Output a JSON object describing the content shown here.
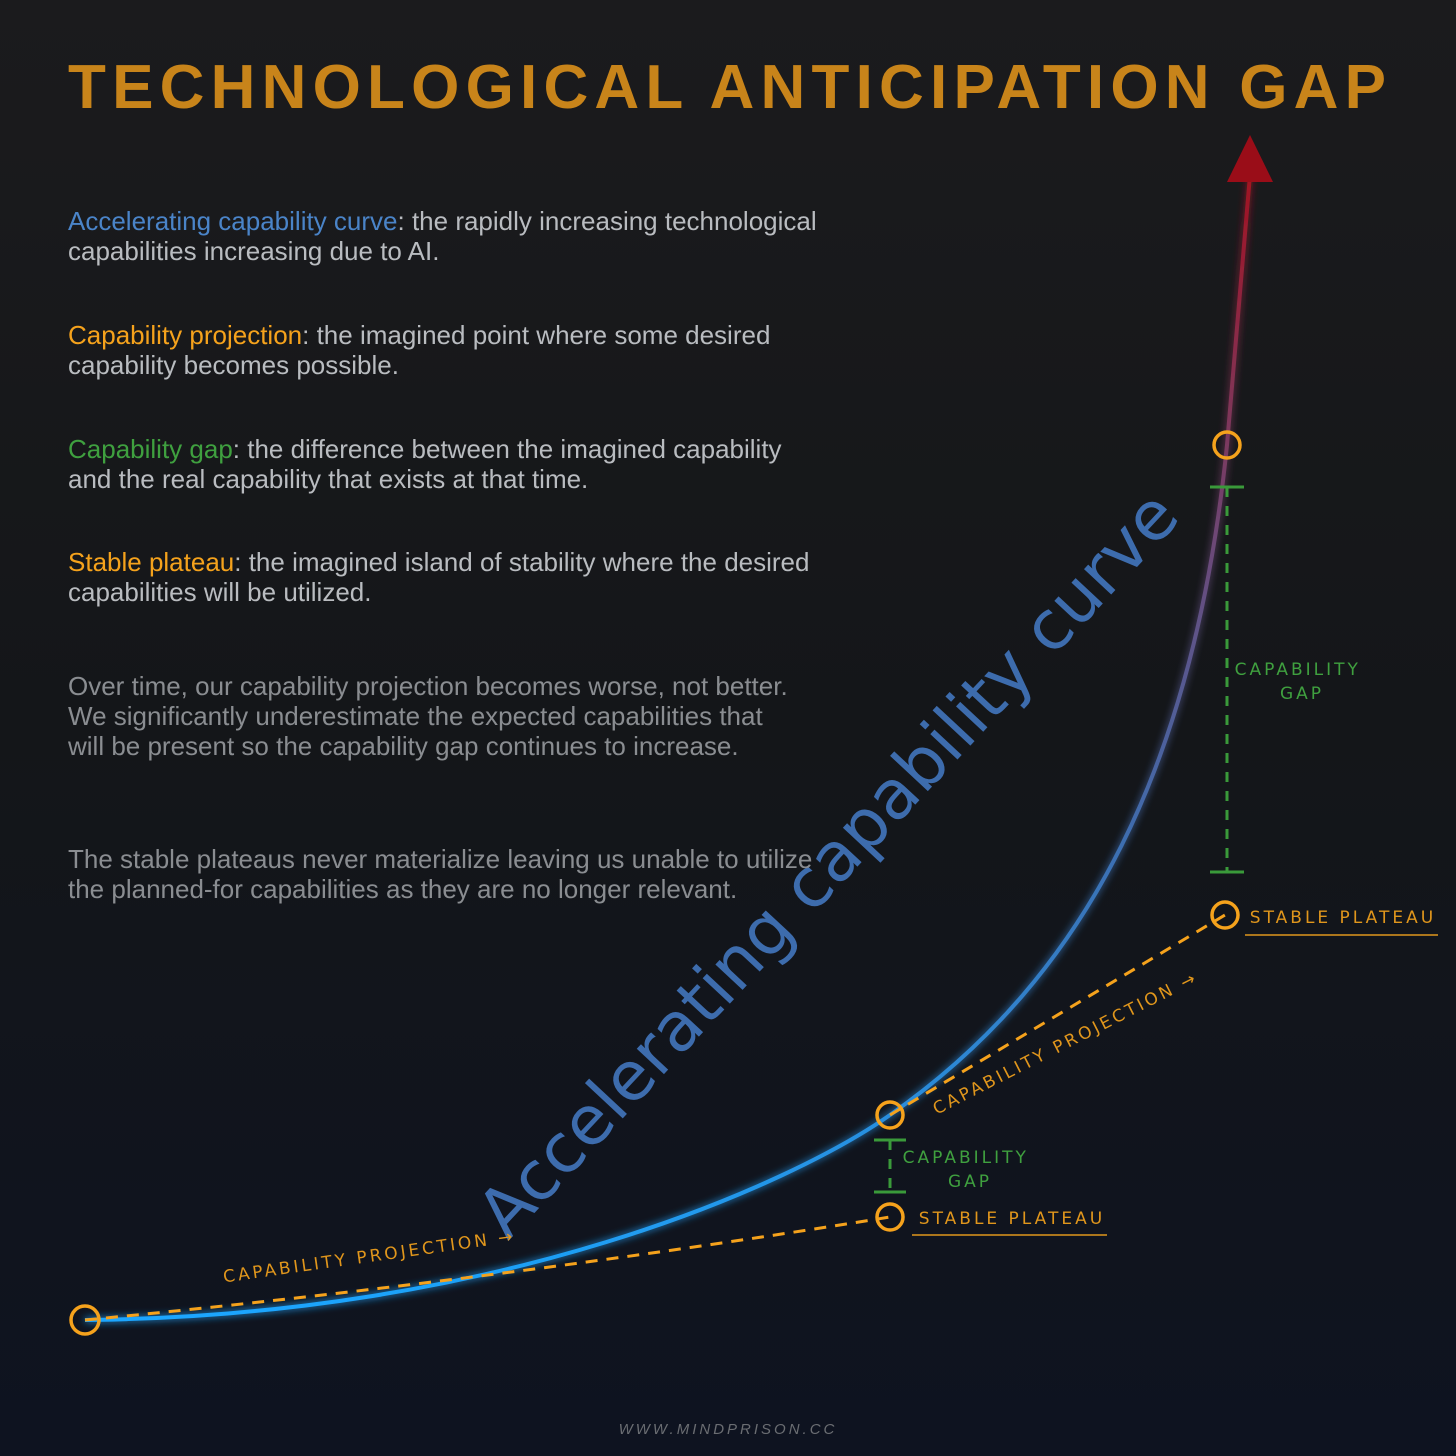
{
  "header": {
    "title": "TECHNOLOGICAL ANTICIPATION GAP"
  },
  "definitions": [
    {
      "term": "Accelerating capability curve",
      "text": ": the rapidly increasing technological capabilities increasing due to AI."
    },
    {
      "term": "Capability projection",
      "text": ": the imagined point where some desired capability becomes possible."
    },
    {
      "term": "Capability gap",
      "text": ": the difference between the imagined capability and the real capability that exists at that time."
    },
    {
      "term": "Stable plateau",
      "text": ": the imagined island of stability where the desired capabilities will be utilized."
    }
  ],
  "paragraphs": [
    "Over time, our capability projection becomes worse, not better. We significantly underestimate the expected capabilities that will be present so the capability gap continues to increase.",
    "The stable plateaus never materialize leaving us unable to utilize the planned-for capabilities as they are no longer relevant."
  ],
  "diagram": {
    "curve_label": "Accelerating capability curve",
    "projection_labels": [
      "CAPABILITY PROJECTION →",
      "CAPABILITY PROJECTION →"
    ],
    "gap_labels": [
      {
        "lines": [
          "CAPABILITY",
          "GAP"
        ]
      },
      {
        "lines": [
          "CAPABILITY",
          "GAP"
        ]
      }
    ],
    "plateau_labels": [
      "STABLE PLATEAU",
      "STABLE PLATEAU"
    ]
  },
  "footer": "WWW.MINDPRISON.CC"
}
